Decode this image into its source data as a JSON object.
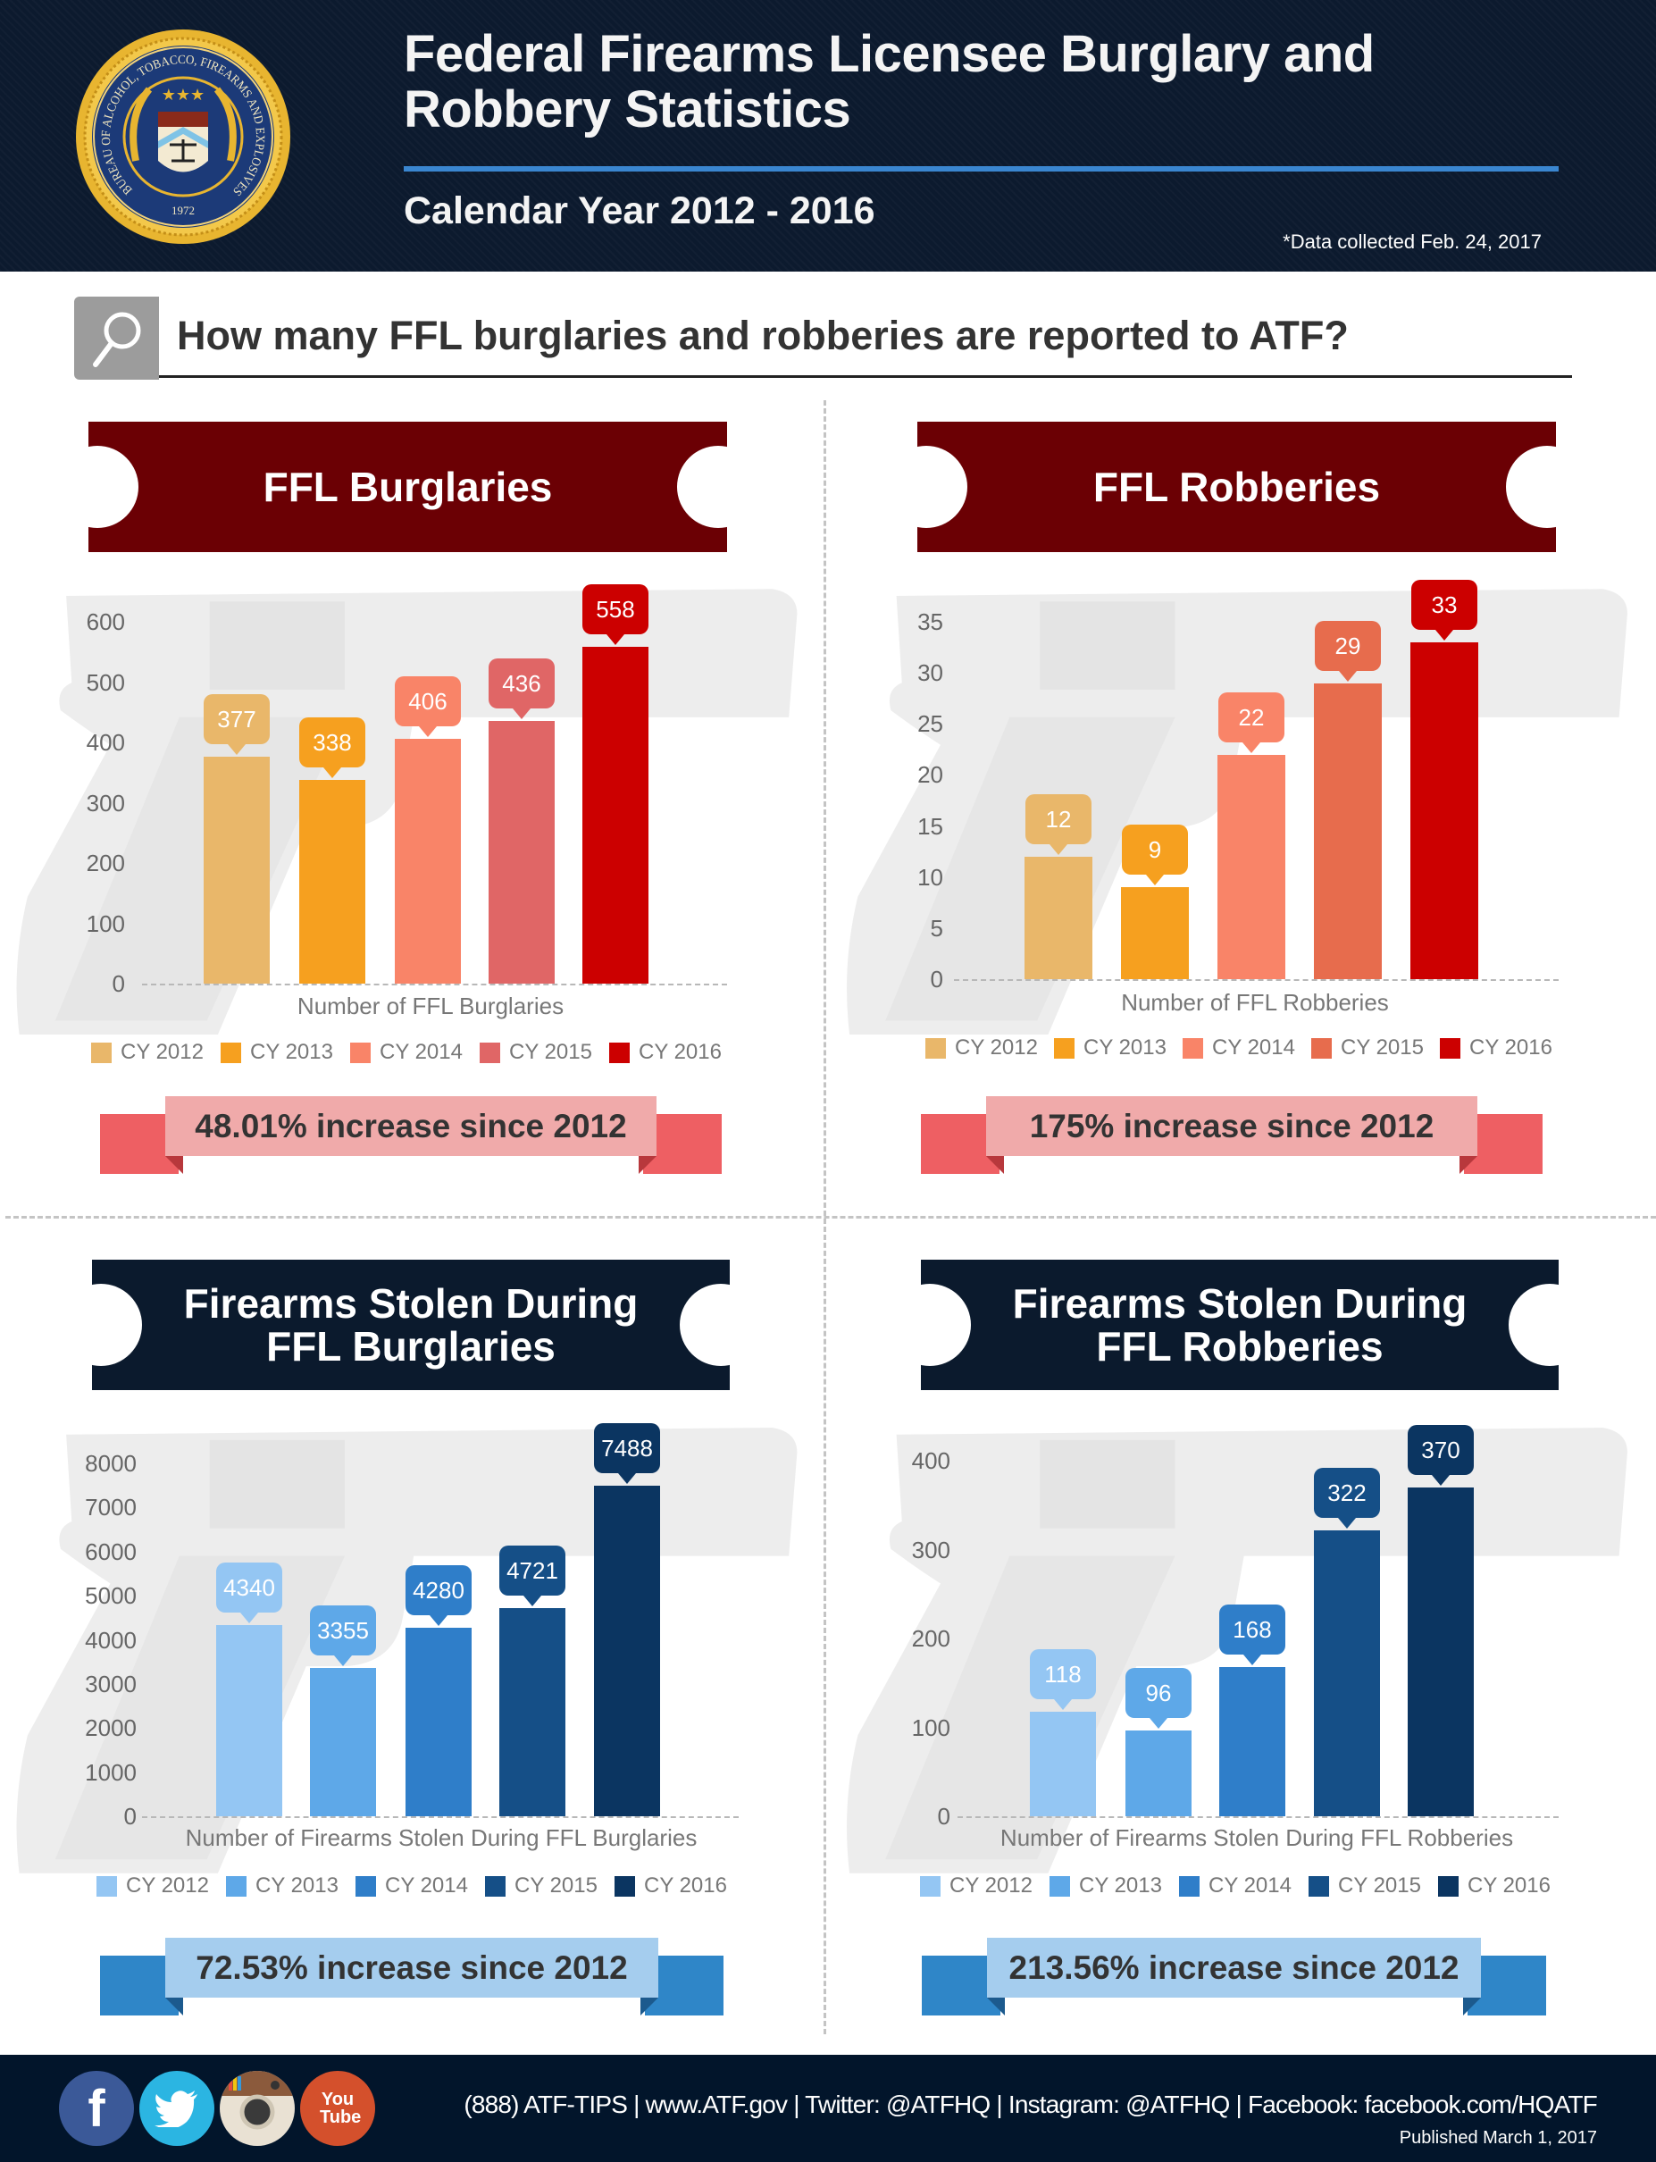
{
  "header": {
    "title_line1": "Federal Firearms Licensee Burglary and",
    "title_line2": "Robbery Statistics",
    "subtitle": "Calendar Year 2012 - 2016",
    "note": "*Data collected Feb. 24, 2017"
  },
  "logo": {
    "ring_text": "BUREAU OF ALCOHOL, TOBACCO, FIREARMS AND EXPLOSIVES",
    "year": "1972"
  },
  "question": {
    "text": "How many FFL burglaries and robberies are reported to ATF?",
    "icon": "search-icon"
  },
  "chart_data": [
    {
      "type": "bar",
      "title": "FFL Burglaries",
      "xlabel": "Number of FFL Burglaries",
      "categories": [
        "CY 2012",
        "CY 2013",
        "CY 2014",
        "CY 2015",
        "CY 2016"
      ],
      "values": [
        377,
        338,
        406,
        436,
        558
      ],
      "yticks": [
        0,
        100,
        200,
        300,
        400,
        500,
        600
      ],
      "ylim": [
        0,
        600
      ],
      "colors": [
        "#e9b76a",
        "#f6a01f",
        "#f98468",
        "#e06666",
        "#cc0000"
      ],
      "legend": "bottom",
      "grid": false,
      "banner_color": "#6b0004",
      "annotation": "48.01% increase since 2012"
    },
    {
      "type": "bar",
      "title": "FFL Robberies",
      "xlabel": "Number of FFL Robberies",
      "categories": [
        "CY 2012",
        "CY 2013",
        "CY 2014",
        "CY 2015",
        "CY 2016"
      ],
      "values": [
        12,
        9,
        22,
        29,
        33
      ],
      "yticks": [
        0,
        5,
        10,
        15,
        20,
        25,
        30,
        35
      ],
      "ylim": [
        0,
        35
      ],
      "colors": [
        "#e9b76a",
        "#f6a01f",
        "#f98468",
        "#e76c4d",
        "#cc0000"
      ],
      "legend": "bottom",
      "grid": false,
      "banner_color": "#6b0004",
      "annotation": "175% increase since 2012"
    },
    {
      "type": "bar",
      "title": "Firearms Stolen During FFL Burglaries",
      "xlabel": "Number of Firearms Stolen During FFL Burglaries",
      "categories": [
        "CY 2012",
        "CY 2013",
        "CY 2014",
        "CY 2015",
        "CY 2016"
      ],
      "values": [
        4340,
        3355,
        4280,
        4721,
        7488
      ],
      "yticks": [
        0,
        1000,
        2000,
        3000,
        4000,
        5000,
        6000,
        7000,
        8000
      ],
      "ylim": [
        0,
        8000
      ],
      "colors": [
        "#94c6f3",
        "#5ea8e8",
        "#2f7ec9",
        "#154f87",
        "#0b3561"
      ],
      "legend": "bottom",
      "grid": false,
      "banner_color": "#0b1a2d",
      "annotation": "72.53% increase since 2012"
    },
    {
      "type": "bar",
      "title": "Firearms Stolen During FFL Robberies",
      "xlabel": "Number of Firearms Stolen During FFL Robberies",
      "categories": [
        "CY 2012",
        "CY 2013",
        "CY 2014",
        "CY 2015",
        "CY 2016"
      ],
      "values": [
        118,
        96,
        168,
        322,
        370
      ],
      "yticks": [
        0,
        100,
        200,
        300,
        400
      ],
      "ylim": [
        0,
        400
      ],
      "colors": [
        "#94c6f3",
        "#5ea8e8",
        "#2f7ec9",
        "#154f87",
        "#0b3561"
      ],
      "legend": "bottom",
      "grid": false,
      "banner_color": "#0b1a2d",
      "annotation": "213.56% increase since 2012"
    }
  ],
  "ribbon_colors": {
    "red": {
      "band": "#f0aaaa",
      "tail": "#ee5f63",
      "fold": "#b8383c"
    },
    "blue": {
      "band": "#a5cdee",
      "tail": "#2f86c8",
      "fold": "#1c5a8e"
    }
  },
  "footer": {
    "contact": "(888) ATF-TIPS | www.ATF.gov | Twitter: @ATFHQ | Instagram: @ATFHQ | Facebook: facebook.com/HQATF",
    "published": "Published March 1, 2017",
    "social": [
      {
        "name": "facebook",
        "icon": "facebook-icon",
        "glyph": "f",
        "color": "#3b5998"
      },
      {
        "name": "twitter",
        "icon": "twitter-icon",
        "glyph": "",
        "color": "#2bb5e2"
      },
      {
        "name": "instagram",
        "icon": "instagram-icon",
        "glyph": "",
        "color": "#e9e1d3"
      },
      {
        "name": "youtube",
        "icon": "youtube-icon",
        "glyph": "You Tube",
        "color": "#d4502c"
      }
    ]
  }
}
